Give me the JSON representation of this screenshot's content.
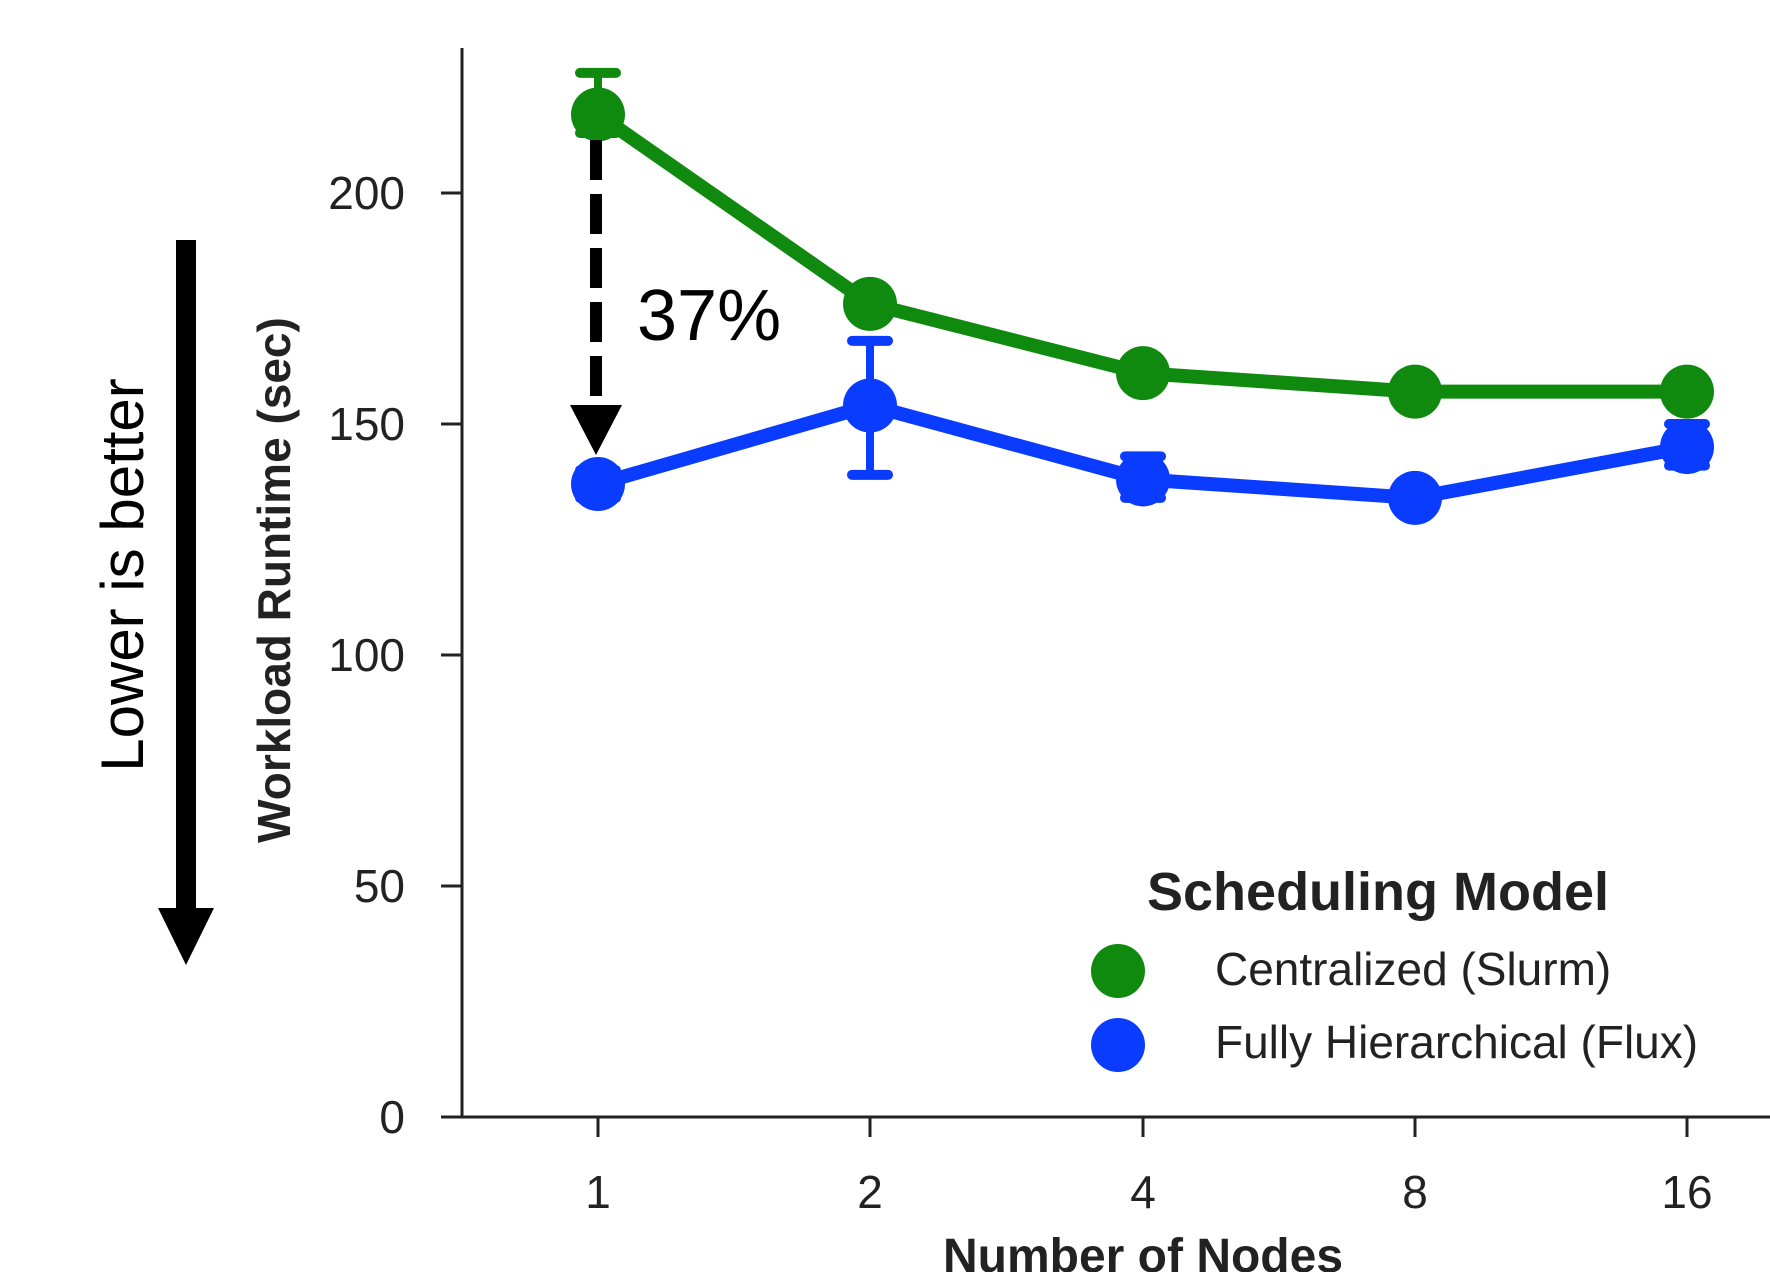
{
  "chart_data": {
    "type": "line",
    "xlabel": "Number of Nodes",
    "ylabel": "Workload Runtime (sec)",
    "categories": [
      "1",
      "2",
      "4",
      "8",
      "16"
    ],
    "ylim": [
      0,
      230
    ],
    "yticks": [
      "0",
      "50",
      "100",
      "150",
      "200"
    ],
    "grid": false,
    "legend": {
      "title": "Scheduling Model",
      "placement": "bottom-right"
    },
    "series": [
      {
        "name": "Centralized (Slurm)",
        "color": "#0f8a0f",
        "values": [
          217,
          176,
          161,
          157,
          157
        ],
        "error_low": [
          213,
          175,
          160,
          156,
          155
        ],
        "error_high": [
          226,
          178,
          162,
          158,
          159
        ]
      },
      {
        "name": "Fully Hierarchical (Flux)",
        "color": "#0a3cff",
        "values": [
          137,
          154,
          138,
          134,
          145
        ],
        "error_low": [
          134,
          139,
          134,
          133,
          141
        ],
        "error_high": [
          140,
          168,
          143,
          136,
          150
        ]
      }
    ],
    "annotations": {
      "reduction_label": "37%",
      "side_note": "Lower is better"
    }
  }
}
